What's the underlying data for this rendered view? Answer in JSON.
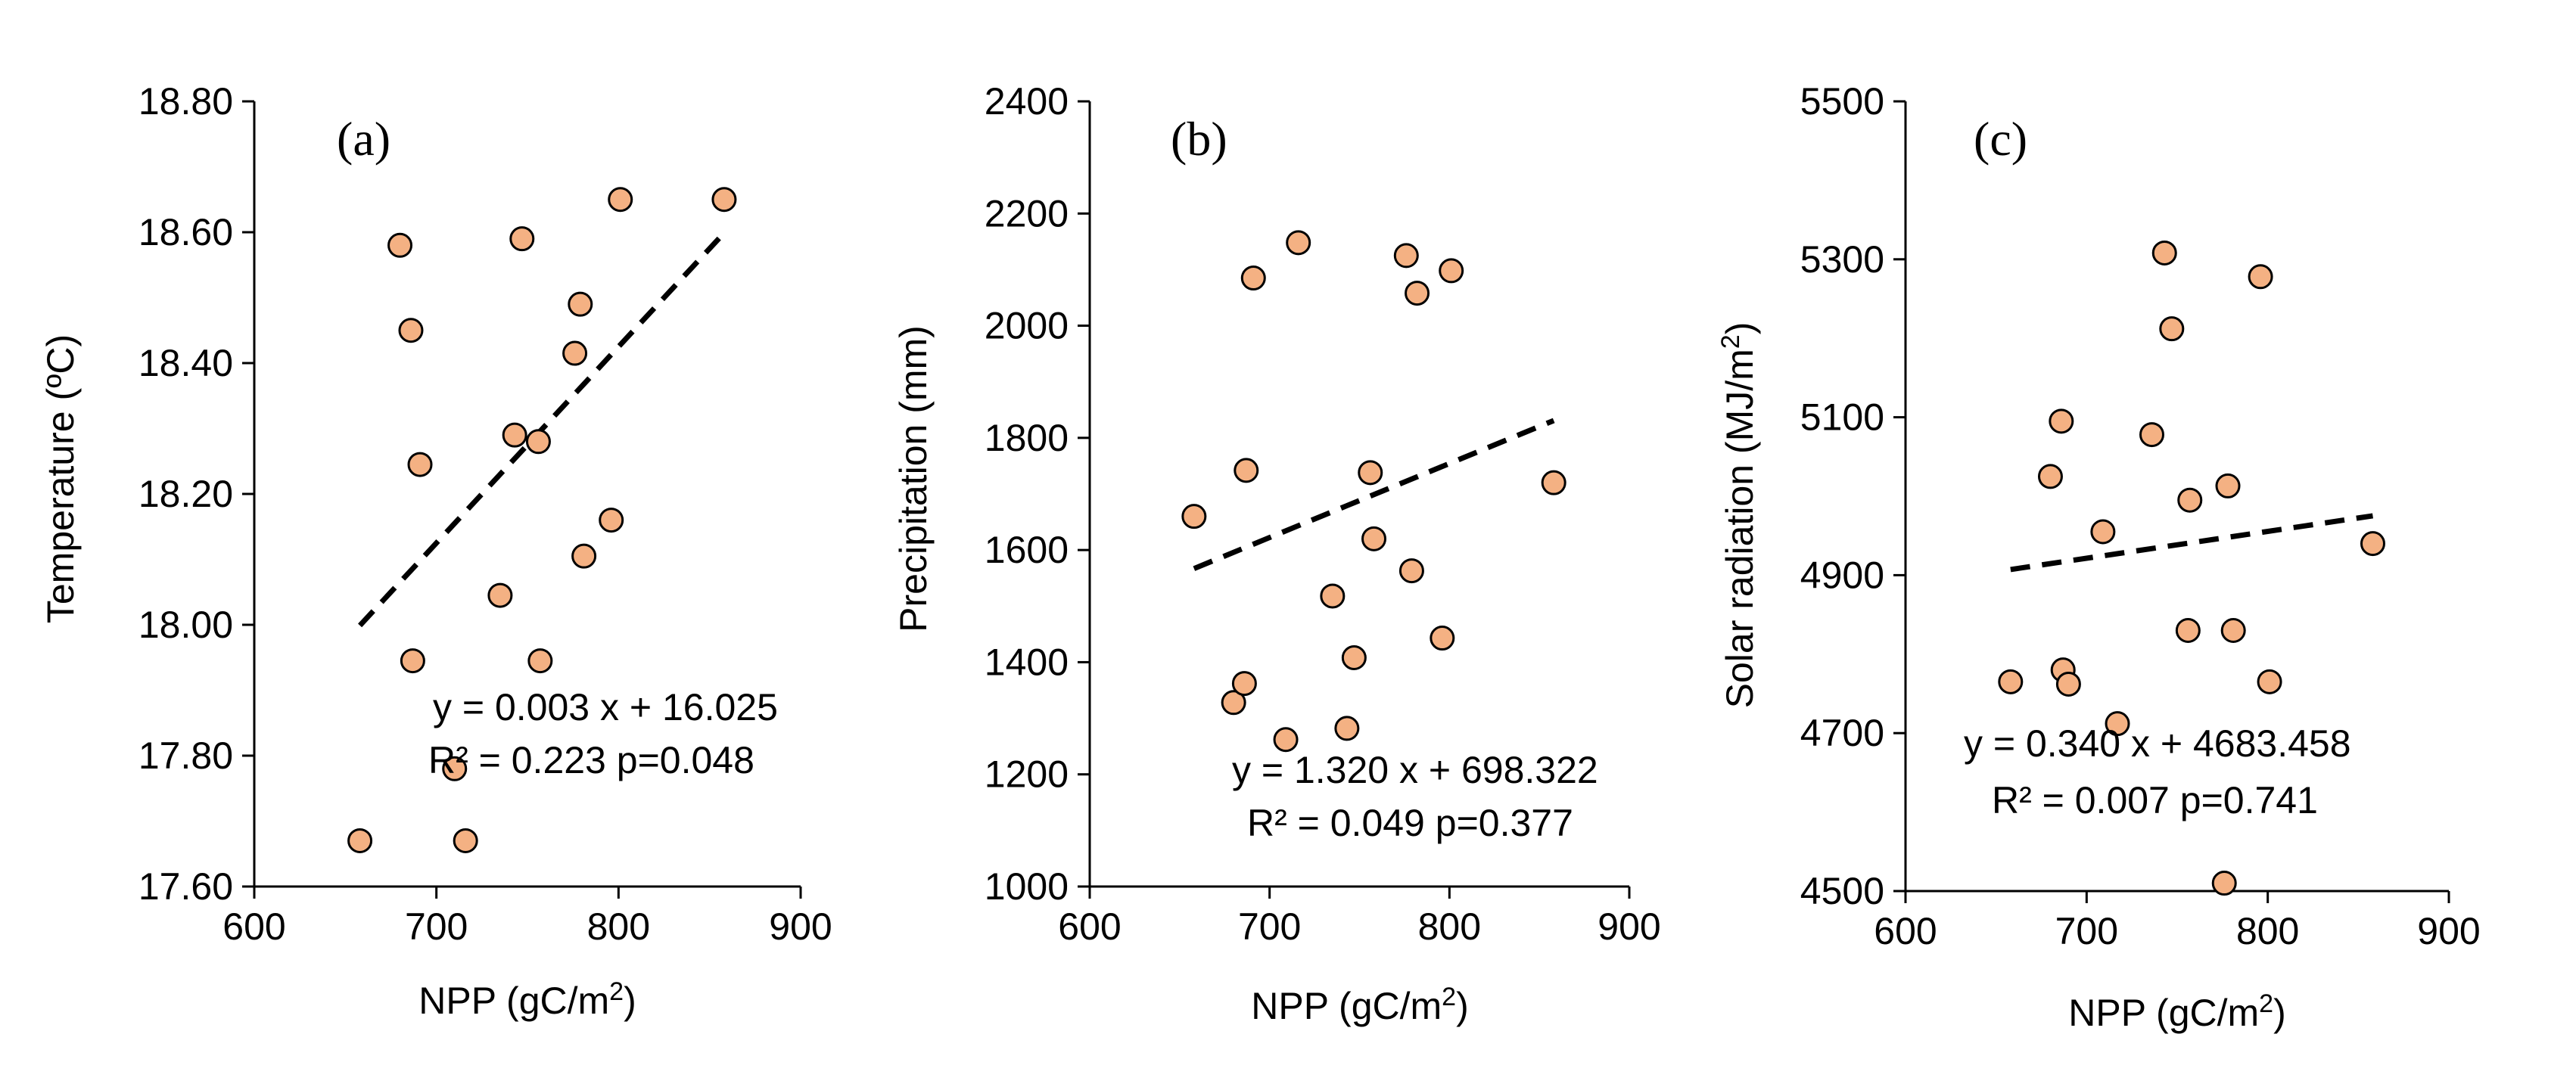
{
  "colors": {
    "point_fill": "#F4B183",
    "axis": "#000000",
    "trend": "#000000"
  },
  "chart_data": [
    {
      "type": "scatter",
      "panel": "(a)",
      "xlabel": "NPP (gC/m²)",
      "ylabel": "Temperature (ºC)",
      "xlim": [
        600,
        900
      ],
      "ylim": [
        17.6,
        18.8
      ],
      "x_ticks": [
        "600",
        "700",
        "800",
        "900"
      ],
      "y_ticks": [
        "17.60",
        "17.80",
        "18.00",
        "18.20",
        "18.40",
        "18.60",
        "18.80"
      ],
      "points": [
        [
          658,
          17.67
        ],
        [
          680,
          18.58
        ],
        [
          686,
          18.45
        ],
        [
          687,
          17.945
        ],
        [
          691,
          18.245
        ],
        [
          710,
          17.78
        ],
        [
          716,
          17.67
        ],
        [
          735,
          18.045
        ],
        [
          743,
          18.29
        ],
        [
          747,
          18.59
        ],
        [
          756,
          18.28
        ],
        [
          757,
          17.945
        ],
        [
          776,
          18.415
        ],
        [
          779,
          18.49
        ],
        [
          781,
          18.105
        ],
        [
          796,
          18.16
        ],
        [
          801,
          18.65
        ],
        [
          858,
          18.65
        ]
      ],
      "trendline": {
        "slope": 0.003,
        "intercept": 16.025,
        "x_range": [
          658,
          858
        ]
      },
      "equation": "y = 0.003 x + 16.025",
      "stats": "R² = 0.223  p=0.048"
    },
    {
      "type": "scatter",
      "panel": "(b)",
      "xlabel": "NPP (gC/m²)",
      "ylabel": "Precipitation (mm)",
      "xlim": [
        600,
        900
      ],
      "ylim": [
        1000,
        2400
      ],
      "x_ticks": [
        "600",
        "700",
        "800",
        "900"
      ],
      "y_ticks": [
        "1000",
        "1200",
        "1400",
        "1600",
        "1800",
        "2000",
        "2200",
        "2400"
      ],
      "points": [
        [
          658,
          1660
        ],
        [
          680,
          1328
        ],
        [
          686,
          1362
        ],
        [
          687,
          1742
        ],
        [
          691,
          2085
        ],
        [
          709,
          1262
        ],
        [
          716,
          2148
        ],
        [
          735,
          1518
        ],
        [
          743,
          1282
        ],
        [
          747,
          1408
        ],
        [
          756,
          1738
        ],
        [
          758,
          1620
        ],
        [
          776,
          2125
        ],
        [
          779,
          1563
        ],
        [
          782,
          2058
        ],
        [
          796,
          1443
        ],
        [
          801,
          2098
        ],
        [
          858,
          1720
        ]
      ],
      "trendline": {
        "slope": 1.32,
        "intercept": 698.322,
        "x_range": [
          658,
          858
        ]
      },
      "equation": "y = 1.320 x + 698.322",
      "stats": "R² = 0.049  p=0.377"
    },
    {
      "type": "scatter",
      "panel": "(c)",
      "xlabel": "NPP (gC/m²)",
      "ylabel": "Solar radiation (MJ/m²)",
      "xlim": [
        600,
        900
      ],
      "ylim": [
        4500,
        5500
      ],
      "x_ticks": [
        "600",
        "700",
        "800",
        "900"
      ],
      "y_ticks": [
        "4500",
        "4700",
        "4900",
        "5100",
        "5300",
        "5500"
      ],
      "points": [
        [
          658,
          4765
        ],
        [
          680,
          5025
        ],
        [
          686,
          5095
        ],
        [
          687,
          4780
        ],
        [
          690,
          4762
        ],
        [
          709,
          4955
        ],
        [
          717,
          4712
        ],
        [
          736,
          5078
        ],
        [
          743,
          5308
        ],
        [
          747,
          5212
        ],
        [
          756,
          4830
        ],
        [
          757,
          4995
        ],
        [
          776,
          4510
        ],
        [
          778,
          5013
        ],
        [
          781,
          4830
        ],
        [
          796,
          5278
        ],
        [
          801,
          4765
        ],
        [
          858,
          4940
        ]
      ],
      "trendline": {
        "slope": 0.34,
        "intercept": 4683.458,
        "x_range": [
          658,
          858
        ]
      },
      "equation": "y = 0.340 x + 4683.458",
      "stats": "R² = 0.007   p=0.741"
    }
  ]
}
